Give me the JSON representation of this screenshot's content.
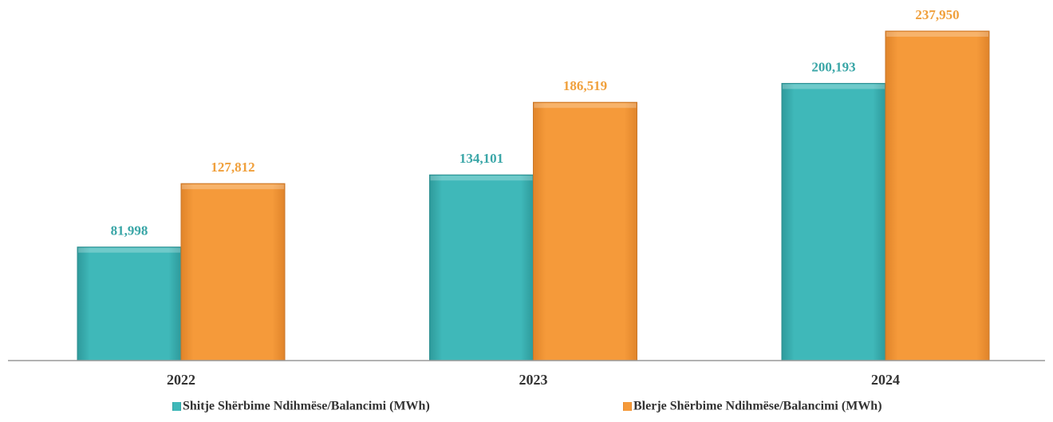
{
  "chart_data": {
    "type": "bar",
    "categories": [
      "2022",
      "2023",
      "2024"
    ],
    "series": [
      {
        "name": "Shitje Shërbime Ndihmëse/Balancimi (MWh)",
        "color": "#3aafb0",
        "label_color": "#3aa6a7",
        "values": [
          81998,
          134101,
          200193
        ],
        "value_labels": [
          "81,998",
          "134,101",
          "200,193"
        ]
      },
      {
        "name": "Blerje Shërbime Ndihmëse/Balancimi (MWh)",
        "color": "#f29434",
        "label_color": "#f0a03c",
        "values": [
          127812,
          186519,
          237950
        ],
        "value_labels": [
          "127,812",
          "186,519",
          "237,950"
        ]
      }
    ],
    "legend": "bottom"
  }
}
